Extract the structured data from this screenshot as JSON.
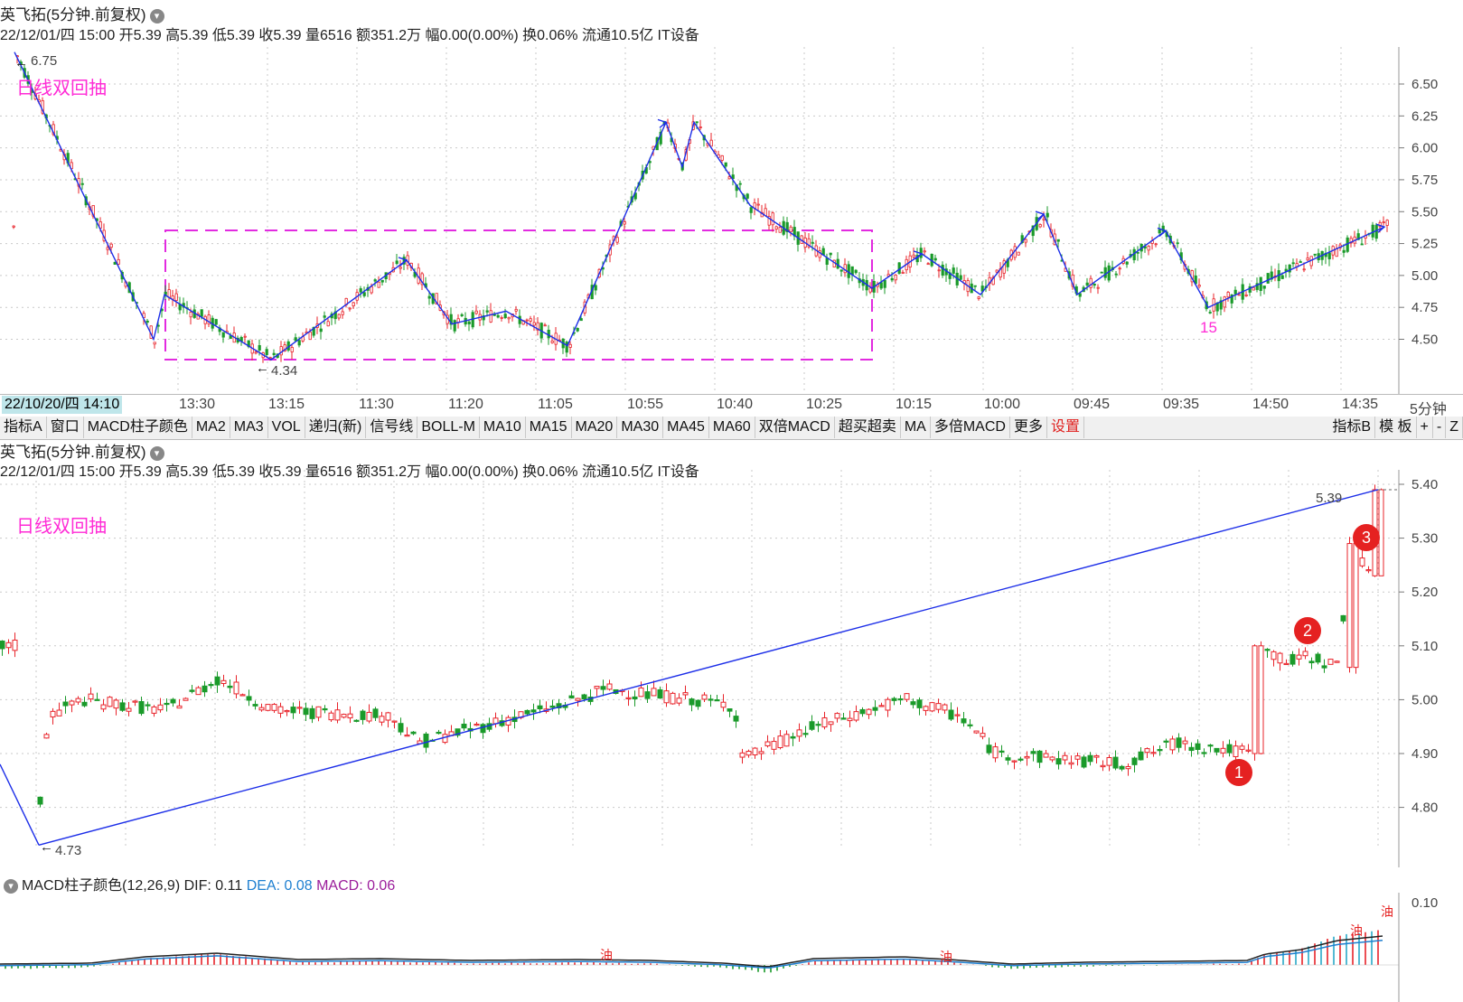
{
  "top_panel": {
    "title": "英飞拓(5分钟.前复权)",
    "info": "22/12/01/四 15:00 开5.39 高5.39 低5.39 收5.39 量6516 额351.2万 幅0.00(0.00%) 换0.06% 流通10.5亿 IT设备",
    "annotation": "日线双回抽",
    "high_label": "6.75",
    "low_label": "4.34",
    "wave_label": "15",
    "y_ticks": [
      "6.50",
      "6.25",
      "6.00",
      "5.75",
      "5.50",
      "5.25",
      "5.00",
      "4.75",
      "4.50"
    ]
  },
  "time_axis": {
    "start": "22/10/20/四 14:10",
    "ticks": [
      "13:30",
      "13:15",
      "11:30",
      "11:20",
      "11:05",
      "10:55",
      "10:40",
      "10:25",
      "10:15",
      "10:00",
      "09:45",
      "09:35",
      "14:50",
      "14:35"
    ],
    "period": "5分钟"
  },
  "toolbar": {
    "items": [
      "指标A",
      "窗口",
      "MACD柱子颜色",
      "MA2",
      "MA3",
      "VOL",
      "递归(新)",
      "信号线",
      "BOLL-M",
      "MA10",
      "MA15",
      "MA20",
      "MA30",
      "MA45",
      "MA60",
      "双倍MACD",
      "超买超卖",
      "MA",
      "多倍MACD",
      "更多"
    ],
    "settings": "设置",
    "right_items": [
      "指标B",
      "模 板",
      "+",
      "-",
      "Z"
    ]
  },
  "bottom_panel": {
    "title": "英飞拓(5分钟.前复权)",
    "info": "22/12/01/四 15:00 开5.39 高5.39 低5.39 收5.39 量6516 额351.2万 幅0.00(0.00%) 换0.06% 流通10.5亿 IT设备",
    "annotation": "日线双回抽",
    "high_label": "5.39",
    "low_label": "4.73",
    "badges": [
      "1",
      "2",
      "3"
    ],
    "y_ticks": [
      "5.40",
      "5.30",
      "5.20",
      "5.10",
      "5.00",
      "4.90",
      "4.80"
    ]
  },
  "macd": {
    "name": "MACD柱子颜色(12,26,9)",
    "dif_label": "DIF: 0.11",
    "dea_label": "DEA: 0.08",
    "macd_label": "MACD: 0.06",
    "y_tick": "0.10",
    "marker": "油"
  },
  "colors": {
    "up": "#e8232a",
    "down": "#1a9a2a",
    "trend": "#1c2ee8",
    "box": "#e22be0",
    "annotation": "#ff2bd6",
    "dea": "#1e7fd0",
    "macd": "#9b1d9b"
  }
}
